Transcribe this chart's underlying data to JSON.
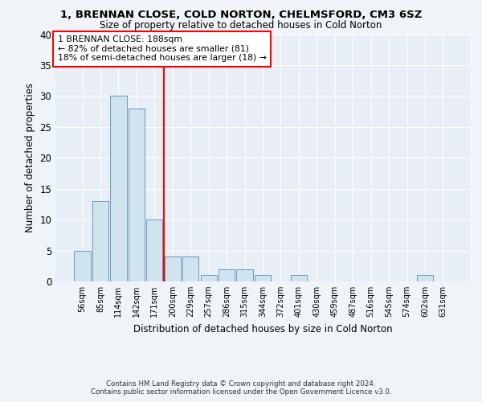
{
  "title": "1, BRENNAN CLOSE, COLD NORTON, CHELMSFORD, CM3 6SZ",
  "subtitle": "Size of property relative to detached houses in Cold Norton",
  "xlabel": "Distribution of detached houses by size in Cold Norton",
  "ylabel": "Number of detached properties",
  "bar_color": "#d0e4f0",
  "bar_edge_color": "#6899bb",
  "plot_bg_color": "#e8eef5",
  "fig_bg_color": "#f0f4f8",
  "grid_color": "#ffffff",
  "categories": [
    "56sqm",
    "85sqm",
    "114sqm",
    "142sqm",
    "171sqm",
    "200sqm",
    "229sqm",
    "257sqm",
    "286sqm",
    "315sqm",
    "344sqm",
    "372sqm",
    "401sqm",
    "430sqm",
    "459sqm",
    "487sqm",
    "516sqm",
    "545sqm",
    "574sqm",
    "602sqm",
    "631sqm"
  ],
  "values": [
    5,
    13,
    30,
    28,
    10,
    4,
    4,
    1,
    2,
    2,
    1,
    0,
    1,
    0,
    0,
    0,
    0,
    0,
    0,
    1,
    0
  ],
  "ylim": [
    0,
    40
  ],
  "yticks": [
    0,
    5,
    10,
    15,
    20,
    25,
    30,
    35,
    40
  ],
  "property_label": "1 BRENNAN CLOSE: 188sqm",
  "annotation_line1": "← 82% of detached houses are smaller (81)",
  "annotation_line2": "18% of semi-detached houses are larger (18) →",
  "vline_x_index": 4.5,
  "footer_line1": "Contains HM Land Registry data © Crown copyright and database right 2024.",
  "footer_line2": "Contains public sector information licensed under the Open Government Licence v3.0."
}
